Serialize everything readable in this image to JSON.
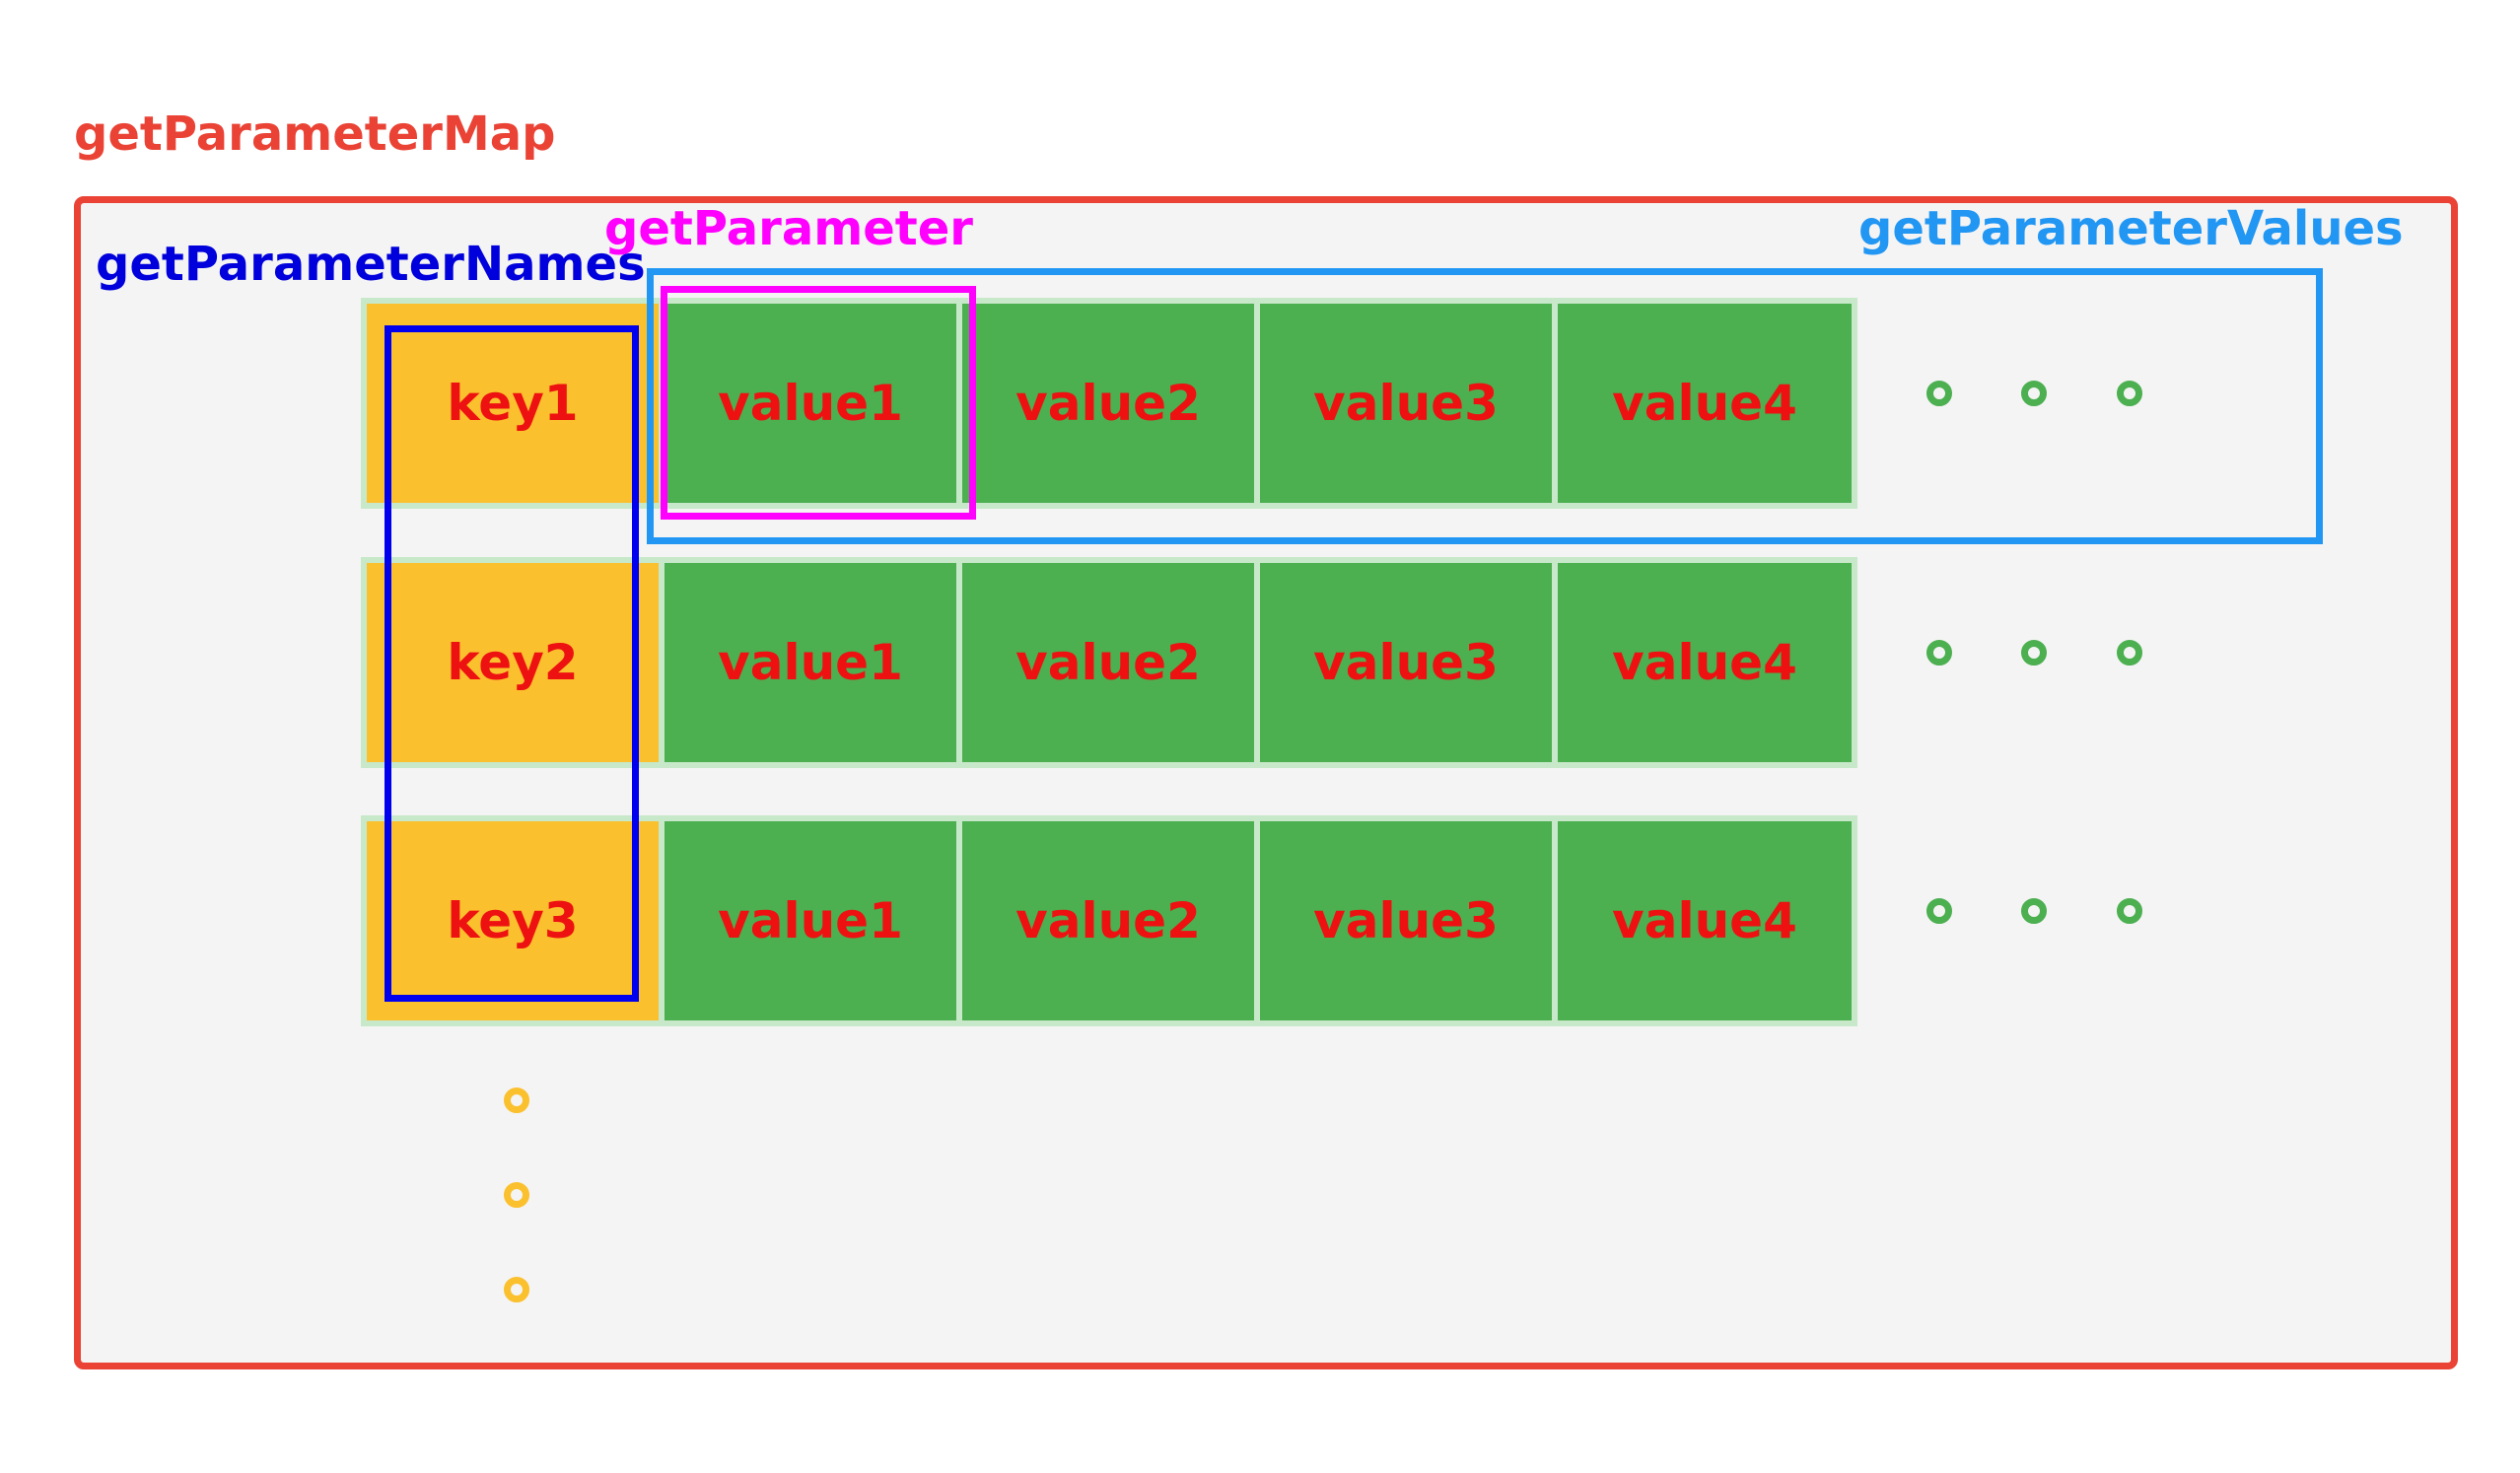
{
  "labels": {
    "map": "getParameterMap",
    "names": "getParameterNames",
    "parameter": "getParameter",
    "values": "getParameterValues"
  },
  "rows": [
    {
      "key": "key1",
      "values": [
        "value1",
        "value2",
        "value3",
        "value4"
      ]
    },
    {
      "key": "key2",
      "values": [
        "value1",
        "value2",
        "value3",
        "value4"
      ]
    },
    {
      "key": "key3",
      "values": [
        "value1",
        "value2",
        "value3",
        "value4"
      ]
    }
  ],
  "colors": {
    "map": "#ea4335",
    "names": "#0000ee",
    "parameter": "#ff00ff",
    "values": "#2196f3",
    "key_fill": "#fbc02d",
    "value_fill": "#4caf50",
    "cell_text": "#ee1111"
  }
}
